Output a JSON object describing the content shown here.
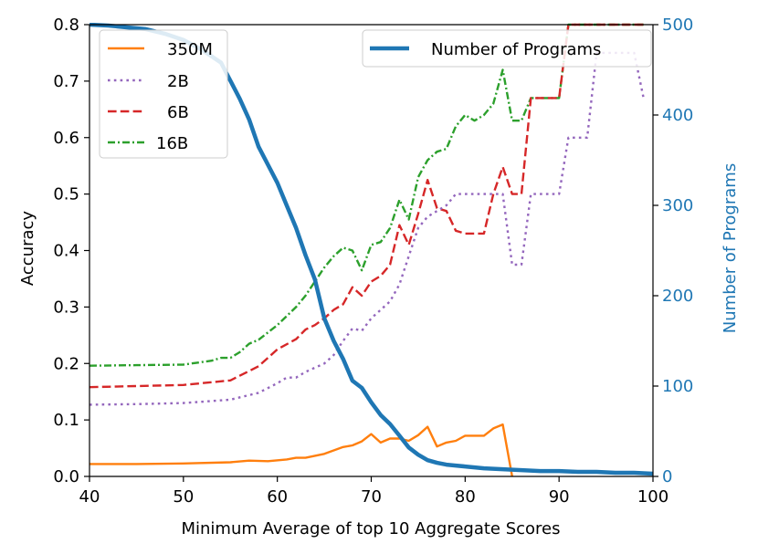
{
  "chart_data": {
    "type": "line",
    "xlabel": "Minimum Average of top 10 Aggregate Scores",
    "ylabel": "Accuracy",
    "y2label": "Number of Programs",
    "xlim": [
      40,
      100
    ],
    "ylim": [
      0,
      0.8
    ],
    "y2lim": [
      0,
      500
    ],
    "x_ticks": [
      40,
      50,
      60,
      70,
      80,
      90,
      100
    ],
    "y_ticks": [
      0.0,
      0.1,
      0.2,
      0.3,
      0.4,
      0.5,
      0.6,
      0.7,
      0.8
    ],
    "y_tick_labels": [
      "0.0",
      "0.1",
      "0.2",
      "0.3",
      "0.4",
      "0.5",
      "0.6",
      "0.7",
      "0.8"
    ],
    "y2_ticks": [
      0,
      100,
      200,
      300,
      400,
      500
    ],
    "legend_left": "upper-left",
    "legend_right": "upper-right",
    "series": [
      {
        "name": "350M",
        "axis": "left",
        "color": "#ff7f0e",
        "style": "solid",
        "x": [
          40,
          45,
          50,
          55,
          57,
          59,
          61,
          62,
          63,
          65,
          67,
          68,
          69,
          70,
          71,
          72,
          73,
          74,
          75,
          76,
          77,
          78,
          79,
          80,
          81,
          82,
          83,
          84,
          85
        ],
        "y": [
          0.022,
          0.022,
          0.023,
          0.025,
          0.028,
          0.027,
          0.03,
          0.033,
          0.033,
          0.04,
          0.052,
          0.055,
          0.062,
          0.075,
          0.06,
          0.067,
          0.067,
          0.063,
          0.073,
          0.088,
          0.053,
          0.06,
          0.063,
          0.072,
          0.072,
          0.072,
          0.085,
          0.092,
          0.0
        ]
      },
      {
        "name": "2B",
        "axis": "left",
        "color": "#9467bd",
        "style": "dotted",
        "x": [
          40,
          45,
          50,
          55,
          58,
          60,
          61,
          62,
          63,
          65,
          66,
          67,
          68,
          69,
          70,
          71,
          72,
          73,
          74,
          75,
          76,
          77,
          78,
          79,
          80,
          81,
          82,
          83,
          84,
          85,
          86,
          87,
          88,
          89,
          90,
          91,
          92,
          93,
          94,
          95,
          96,
          97,
          98,
          99
        ],
        "y": [
          0.127,
          0.128,
          0.13,
          0.136,
          0.148,
          0.165,
          0.175,
          0.175,
          0.185,
          0.2,
          0.215,
          0.24,
          0.262,
          0.258,
          0.28,
          0.295,
          0.31,
          0.34,
          0.39,
          0.44,
          0.46,
          0.47,
          0.48,
          0.5,
          0.5,
          0.5,
          0.5,
          0.5,
          0.5,
          0.375,
          0.375,
          0.5,
          0.5,
          0.5,
          0.5,
          0.6,
          0.6,
          0.6,
          0.75,
          0.75,
          0.75,
          0.75,
          0.75,
          0.67
        ]
      },
      {
        "name": "6B",
        "axis": "left",
        "color": "#d62728",
        "style": "dashed",
        "x": [
          40,
          45,
          50,
          55,
          58,
          60,
          62,
          63,
          64,
          65,
          66,
          67,
          68,
          69,
          70,
          71,
          72,
          73,
          74,
          75,
          76,
          77,
          78,
          79,
          80,
          81,
          82,
          83,
          84,
          85,
          86,
          87,
          88,
          89,
          90,
          91,
          92,
          93,
          94,
          95,
          96,
          97,
          98,
          99
        ],
        "y": [
          0.158,
          0.16,
          0.162,
          0.17,
          0.195,
          0.225,
          0.243,
          0.26,
          0.268,
          0.28,
          0.295,
          0.305,
          0.335,
          0.32,
          0.345,
          0.355,
          0.375,
          0.445,
          0.41,
          0.465,
          0.525,
          0.475,
          0.47,
          0.435,
          0.43,
          0.43,
          0.43,
          0.5,
          0.548,
          0.5,
          0.5,
          0.67,
          0.67,
          0.67,
          0.67,
          0.8,
          0.8,
          0.8,
          0.8,
          0.8,
          0.8,
          0.8,
          0.8,
          0.8
        ]
      },
      {
        "name": "16B",
        "axis": "left",
        "color": "#2ca02c",
        "style": "dashdot",
        "x": [
          40,
          45,
          50,
          53,
          54,
          55,
          56,
          57,
          58,
          60,
          62,
          63,
          64,
          65,
          66,
          67,
          68,
          69,
          70,
          71,
          72,
          73,
          74,
          75,
          76,
          77,
          78,
          79,
          80,
          81,
          82,
          83,
          84,
          85,
          86,
          87,
          88,
          89,
          90,
          91,
          92,
          93,
          94,
          95,
          96,
          97,
          98,
          99
        ],
        "y": [
          0.196,
          0.197,
          0.198,
          0.205,
          0.21,
          0.21,
          0.22,
          0.235,
          0.242,
          0.268,
          0.3,
          0.32,
          0.345,
          0.37,
          0.39,
          0.405,
          0.4,
          0.365,
          0.41,
          0.415,
          0.44,
          0.49,
          0.455,
          0.53,
          0.56,
          0.575,
          0.58,
          0.62,
          0.64,
          0.63,
          0.64,
          0.66,
          0.72,
          0.63,
          0.63,
          0.67,
          0.67,
          0.67,
          0.67,
          0.8,
          0.8,
          0.8,
          0.8,
          0.8,
          0.8,
          0.8,
          0.8,
          0.8
        ]
      },
      {
        "name": "Number of Programs",
        "axis": "right",
        "color": "#1f77b4",
        "style": "solid",
        "x": [
          40,
          42,
          44,
          46,
          48,
          50,
          52,
          54,
          56,
          57,
          58,
          59,
          60,
          61,
          62,
          63,
          64,
          65,
          66,
          67,
          68,
          69,
          70,
          71,
          72,
          73,
          74,
          75,
          76,
          77,
          78,
          79,
          80,
          81,
          82,
          84,
          86,
          88,
          90,
          92,
          94,
          96,
          98,
          100
        ],
        "y": [
          500,
          499,
          497,
          495,
          490,
          483,
          472,
          458,
          418,
          395,
          365,
          345,
          325,
          300,
          275,
          245,
          218,
          175,
          150,
          130,
          106,
          98,
          82,
          68,
          58,
          45,
          32,
          24,
          18,
          15,
          13,
          12,
          11,
          10,
          9,
          8,
          7,
          6,
          6,
          5,
          5,
          4,
          4,
          3
        ]
      }
    ]
  }
}
